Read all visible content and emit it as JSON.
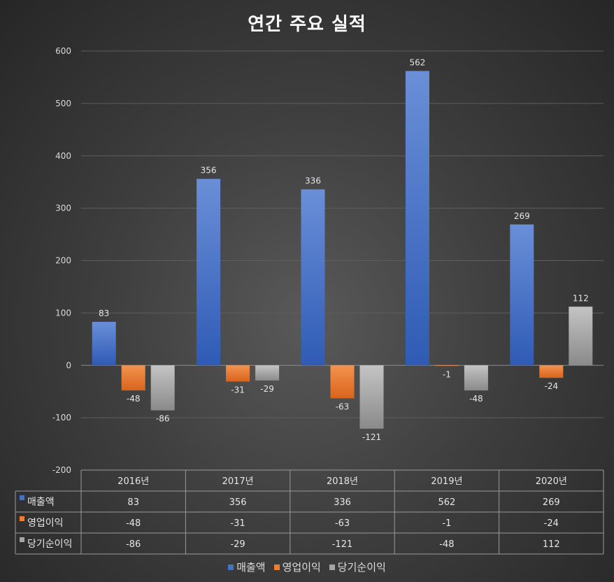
{
  "chart_data": {
    "type": "bar",
    "title": "연간 주요 실적",
    "categories": [
      "2016년",
      "2017년",
      "2018년",
      "2019년",
      "2020년"
    ],
    "series": [
      {
        "name": "매출액",
        "values": [
          83,
          356,
          336,
          562,
          269
        ],
        "color": "#4472c4"
      },
      {
        "name": "영업이익",
        "values": [
          -48,
          -31,
          -63,
          -1,
          -24
        ],
        "color": "#ed7d31"
      },
      {
        "name": "당기순이익",
        "values": [
          -86,
          -29,
          -121,
          -48,
          112
        ],
        "color": "#a5a5a5"
      }
    ],
    "ylim": [
      -200,
      600
    ],
    "yticks": [
      -200,
      -100,
      0,
      100,
      200,
      300,
      400,
      500,
      600
    ],
    "grid": true,
    "data_table": true,
    "legend_position": "bottom"
  }
}
